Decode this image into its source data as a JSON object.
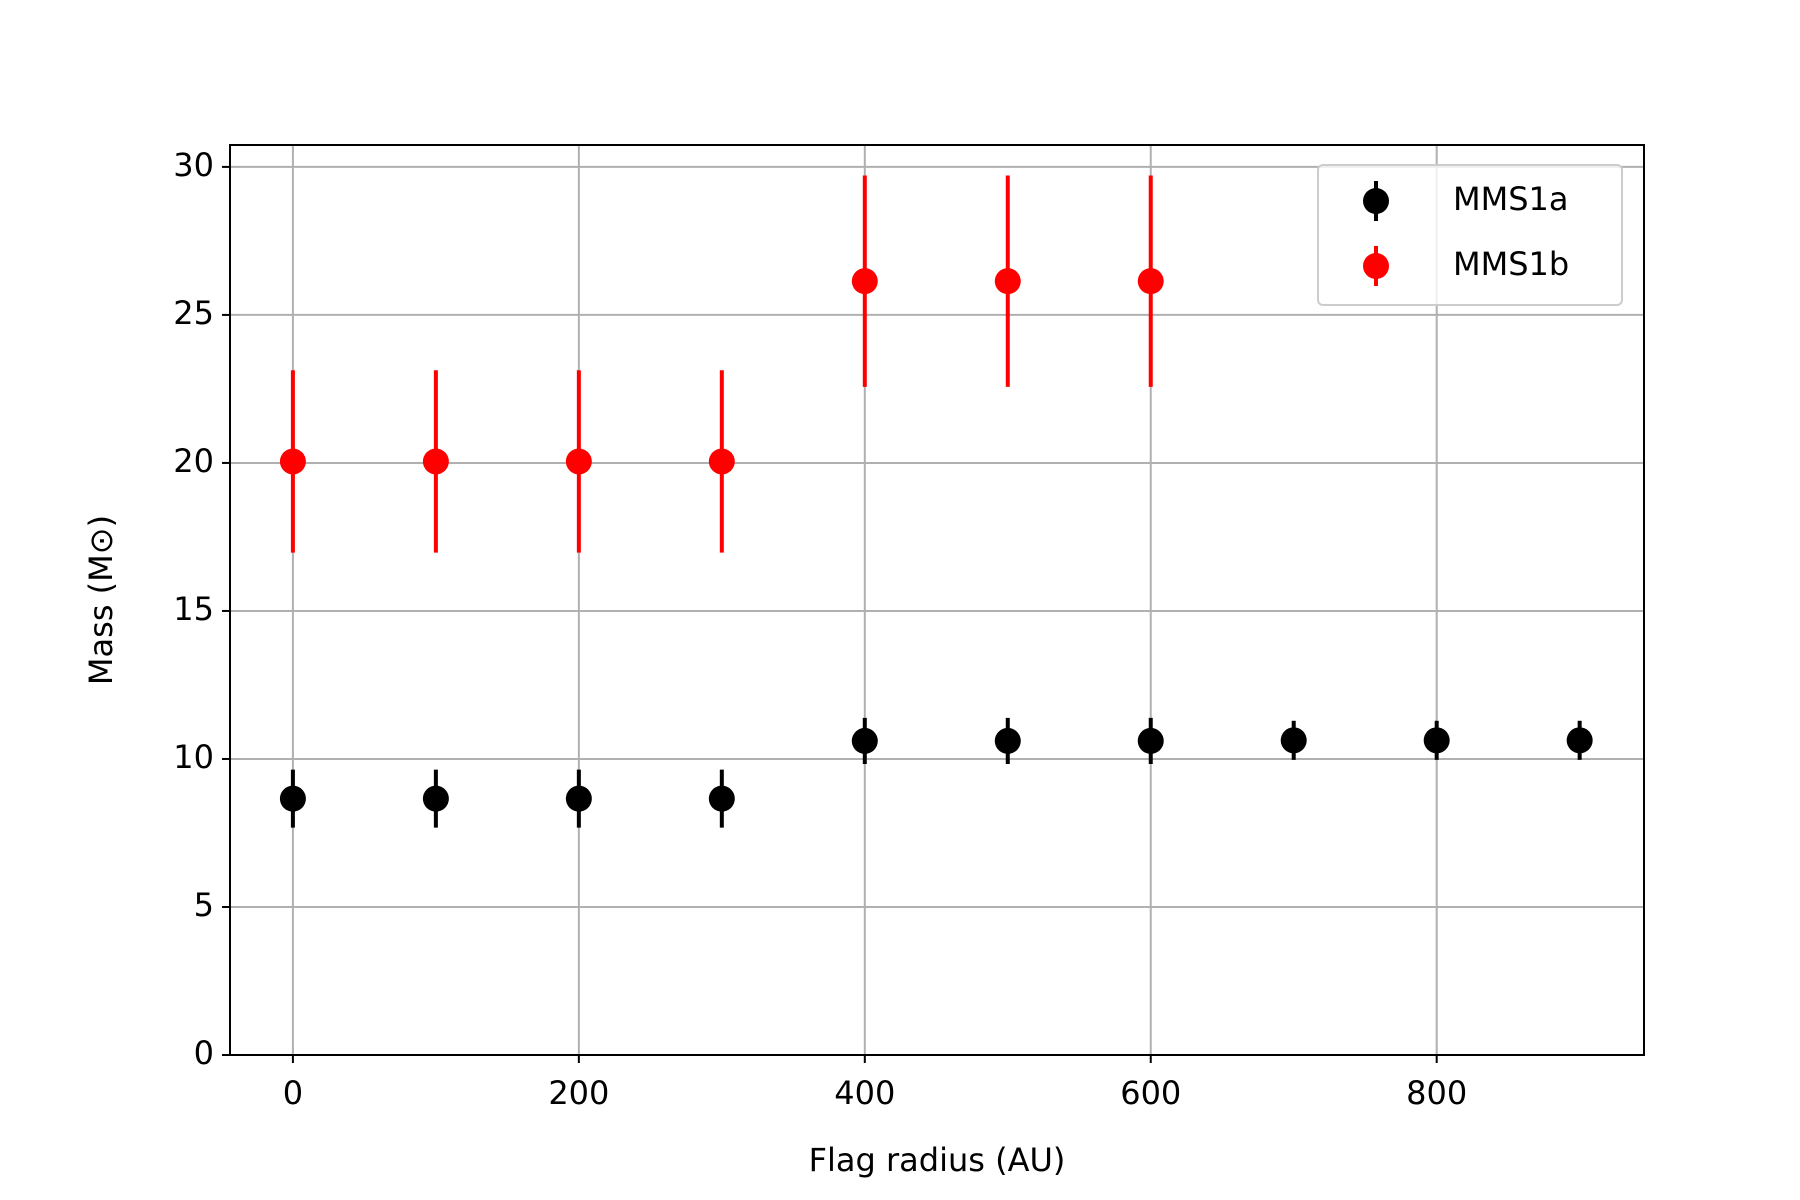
{
  "chart_data": {
    "type": "errorbar",
    "xlabel": "Flag radius (AU)",
    "ylabel": "Mass (M⊙)",
    "x": [
      0,
      100,
      200,
      300,
      400,
      500,
      600,
      700,
      800,
      900
    ],
    "series": [
      {
        "name": "MMS1a",
        "color": "#000000",
        "values": [
          8.66,
          8.66,
          8.66,
          8.66,
          10.61,
          10.61,
          10.61,
          10.63,
          10.63,
          10.63
        ],
        "errors": [
          0.98,
          0.98,
          0.98,
          0.98,
          0.78,
          0.78,
          0.78,
          0.66,
          0.66,
          0.66
        ]
      },
      {
        "name": "MMS1b",
        "color": "#ff0000",
        "values": [
          20.05,
          20.05,
          20.05,
          20.05,
          26.14,
          26.14,
          26.14,
          null,
          null,
          null
        ],
        "errors": [
          3.08,
          3.08,
          3.08,
          3.08,
          3.57,
          3.57,
          3.57,
          null,
          null,
          null
        ]
      }
    ],
    "xlim": [
      -44,
      945
    ],
    "ylim": [
      0,
      30.74
    ],
    "xticks": [
      0,
      200,
      400,
      600,
      800
    ],
    "yticks": [
      0,
      5,
      10,
      15,
      20,
      25,
      30
    ],
    "grid": true,
    "legend": "upper right"
  }
}
